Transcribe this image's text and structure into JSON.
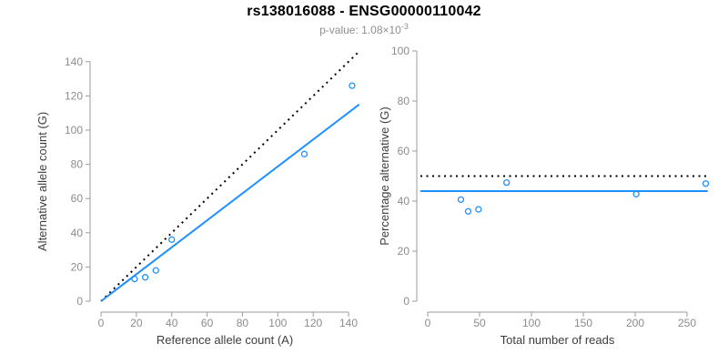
{
  "title": "rs138016088 - ENSG00000110042",
  "subtitle": {
    "prefix": "p-value: 1.08×10",
    "exponent": "-3"
  },
  "colors": {
    "accent_blue": "#1E90FF",
    "line_black": "#000000",
    "axis_gray": "#9b9b9b",
    "tick_label_gray": "#8c8c8c",
    "axis_title_dark": "#3d3d3d",
    "subtitle_gray": "#8f8f8f",
    "background": "#ffffff"
  },
  "chart_data": [
    {
      "type": "scatter",
      "name": "allele-count-plot",
      "xlabel": "Reference allele count (A)",
      "ylabel": "Alternative allele count (G)",
      "xlim": [
        0,
        146
      ],
      "ylim": [
        0,
        146
      ],
      "x_ticks": [
        0,
        20,
        40,
        60,
        80,
        100,
        120,
        140
      ],
      "y_ticks": [
        0,
        20,
        40,
        60,
        80,
        100,
        120,
        140
      ],
      "grid": false,
      "legend": null,
      "marker": "open-circle",
      "points": [
        [
          19,
          13
        ],
        [
          25,
          14
        ],
        [
          31,
          18
        ],
        [
          40,
          36
        ],
        [
          115,
          86
        ],
        [
          142,
          126
        ]
      ],
      "lines": [
        {
          "name": "identity-line",
          "style": "dotted",
          "color": "#000000",
          "x1": 0,
          "y1": 0,
          "x2": 146,
          "y2": 146
        },
        {
          "name": "fit-line",
          "style": "solid",
          "color": "#1E90FF",
          "x1": 0,
          "y1": 0,
          "x2": 146,
          "y2": 115
        }
      ]
    },
    {
      "type": "scatter",
      "name": "percentage-plot",
      "xlabel": "Total number of reads",
      "ylabel": "Percentage alternative (G)",
      "xlim": [
        -7,
        270
      ],
      "ylim": [
        0,
        100
      ],
      "x_ticks": [
        0,
        50,
        100,
        150,
        200,
        250
      ],
      "y_ticks": [
        0,
        20,
        40,
        60,
        80,
        100
      ],
      "grid": false,
      "legend": null,
      "marker": "open-circle",
      "points": [
        [
          32,
          40.6
        ],
        [
          39,
          35.9
        ],
        [
          49,
          36.7
        ],
        [
          76,
          47.4
        ],
        [
          201,
          42.8
        ],
        [
          268,
          47.0
        ]
      ],
      "lines": [
        {
          "name": "expected-50-line",
          "style": "dotted",
          "color": "#000000",
          "x1": -7,
          "y1": 50,
          "x2": 270,
          "y2": 50
        },
        {
          "name": "fit-line",
          "style": "solid",
          "color": "#1E90FF",
          "x1": -7,
          "y1": 44,
          "x2": 270,
          "y2": 44
        }
      ]
    }
  ]
}
